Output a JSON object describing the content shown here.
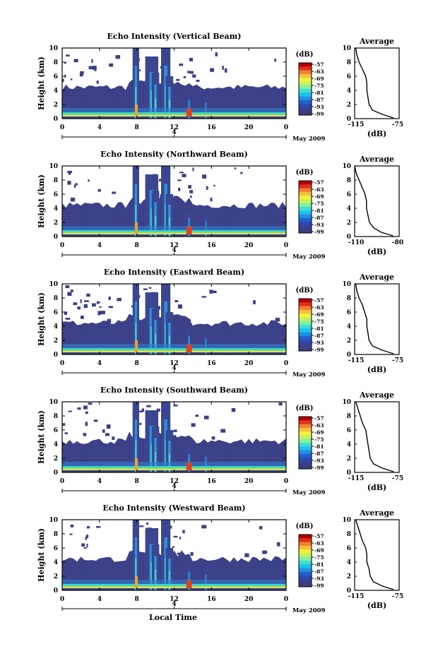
{
  "chart_data": {
    "type": "heatmap",
    "x_ticks": [
      "0",
      "4",
      "8",
      "12",
      "16",
      "20",
      "0"
    ],
    "y_ticks": [
      "0",
      "2",
      "4",
      "6",
      "8",
      "10"
    ],
    "ylabel": "Height (km)",
    "xlabel": "Local Time",
    "xlim": [
      0,
      24
    ],
    "ylim": [
      0,
      10
    ],
    "date_day": "4",
    "date_label": "May 2009",
    "colorbar": {
      "unit": "(dB)",
      "ticks": [
        "-57",
        "-63",
        "-69",
        "-75",
        "-81",
        "-87",
        "-93",
        "-99"
      ],
      "colors": [
        "#b30000",
        "#e0301e",
        "#f08030",
        "#f4c040",
        "#f2f040",
        "#c8f060",
        "#80f0a0",
        "#40e0d0",
        "#20c0f0",
        "#2090e0",
        "#2060d0",
        "#3048b0",
        "#3a3f8f",
        "#3b3f7f"
      ]
    },
    "panels": [
      {
        "title": "Echo Intensity (Vertical Beam)",
        "avg_title": "Average",
        "avg_xticks": [
          "-115",
          "-75"
        ],
        "avg_xlabel": "(dB)",
        "avg_xlim": [
          -115,
          -75
        ],
        "avg_profile": [
          [
            -80,
            0.1
          ],
          [
            -90,
            0.6
          ],
          [
            -99,
            1.2
          ],
          [
            -102,
            2.0
          ],
          [
            -103,
            3.0
          ],
          [
            -104,
            4.0
          ],
          [
            -104,
            5.0
          ],
          [
            -105,
            6.0
          ],
          [
            -108,
            7.0
          ],
          [
            -111,
            8.0
          ],
          [
            -113,
            9.0
          ],
          [
            -114,
            10.0
          ]
        ]
      },
      {
        "title": "Echo Intensity (Northward Beam)",
        "avg_title": "Average",
        "avg_xticks": [
          "-110",
          "-80"
        ],
        "avg_xlabel": "(dB)",
        "avg_xlim": [
          -110,
          -80
        ],
        "avg_profile": [
          [
            -84,
            0.1
          ],
          [
            -92,
            0.6
          ],
          [
            -97,
            1.2
          ],
          [
            -100,
            2.0
          ],
          [
            -101,
            3.0
          ],
          [
            -102,
            4.0
          ],
          [
            -102,
            5.0
          ],
          [
            -103,
            6.0
          ],
          [
            -105,
            7.0
          ],
          [
            -107,
            8.0
          ],
          [
            -109,
            9.0
          ],
          [
            -110,
            10.0
          ]
        ]
      },
      {
        "title": "Echo Intensity (Eastward Beam)",
        "avg_title": "Average",
        "avg_xticks": [
          "-115",
          "-75"
        ],
        "avg_xlabel": "(dB)",
        "avg_xlim": [
          -115,
          -75
        ],
        "avg_profile": [
          [
            -80,
            0.1
          ],
          [
            -90,
            0.6
          ],
          [
            -99,
            1.2
          ],
          [
            -102,
            2.0
          ],
          [
            -103,
            3.0
          ],
          [
            -104,
            4.0
          ],
          [
            -104,
            5.0
          ],
          [
            -106,
            6.0
          ],
          [
            -108,
            7.0
          ],
          [
            -111,
            8.0
          ],
          [
            -113,
            9.0
          ],
          [
            -114,
            10.0
          ]
        ]
      },
      {
        "title": "Echo Intensity (Southward Beam)",
        "avg_title": "Average",
        "avg_xticks": [
          "-115",
          "-75"
        ],
        "avg_xlabel": "(dB)",
        "avg_xlim": [
          -115,
          -75
        ],
        "avg_profile": [
          [
            -80,
            0.1
          ],
          [
            -90,
            0.6
          ],
          [
            -98,
            1.2
          ],
          [
            -101,
            2.0
          ],
          [
            -102,
            3.0
          ],
          [
            -103,
            4.0
          ],
          [
            -104,
            5.0
          ],
          [
            -105,
            6.0
          ],
          [
            -108,
            7.0
          ],
          [
            -110,
            8.0
          ],
          [
            -112,
            9.0
          ],
          [
            -114,
            10.0
          ]
        ]
      },
      {
        "title": "Echo Intensity (Westward Beam)",
        "avg_title": "Average",
        "avg_xticks": [
          "-115",
          "-75"
        ],
        "avg_xlabel": "(dB)",
        "avg_xlim": [
          -115,
          -75
        ],
        "avg_profile": [
          [
            -80,
            0.1
          ],
          [
            -90,
            0.6
          ],
          [
            -98,
            1.2
          ],
          [
            -101,
            2.0
          ],
          [
            -102,
            3.0
          ],
          [
            -104,
            4.0
          ],
          [
            -104,
            5.0
          ],
          [
            -105,
            6.0
          ],
          [
            -108,
            7.0
          ],
          [
            -110,
            8.0
          ],
          [
            -112,
            9.0
          ],
          [
            -114,
            10.0
          ]
        ]
      }
    ]
  }
}
